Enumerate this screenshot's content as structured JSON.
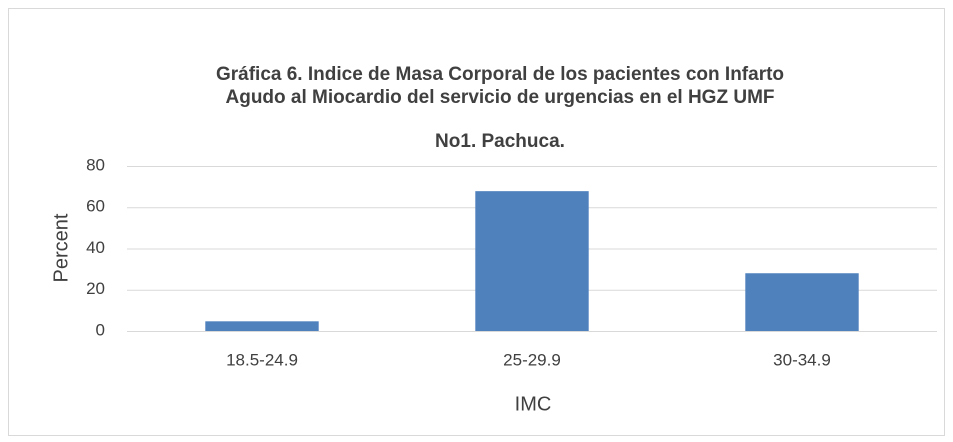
{
  "chart_data": {
    "type": "bar",
    "title": [
      "Gráfica 6. Indice de Masa Corporal de los pacientes con Infarto",
      "Agudo al Miocardio del servicio de urgencias en el HGZ UMF",
      "No1. Pachuca."
    ],
    "categories": [
      "18.5-24.9",
      "25-29.9",
      "30-34.9"
    ],
    "values": [
      4.7,
      67.8,
      28
    ],
    "color": "#4f81bd",
    "xlabel": "IMC",
    "ylabel": "Percent",
    "ylim": [
      0,
      80
    ],
    "yticks": [
      0,
      20,
      40,
      60,
      80
    ],
    "grid": true
  }
}
